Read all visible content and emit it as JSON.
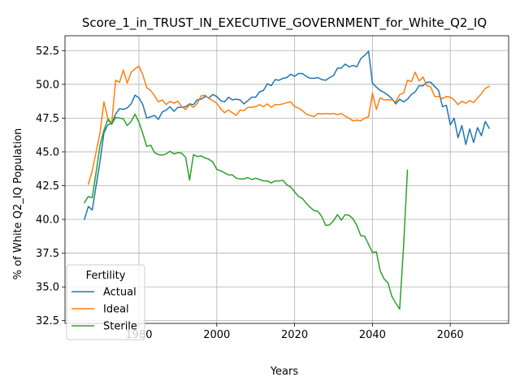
{
  "chart_data": {
    "type": "line",
    "title": "Score_1_in_TRUST_IN_EXECUTIVE_GOVERNMENT_for_White_Q2_IQ",
    "xlabel": "Years",
    "ylabel": "% of White Q2_IQ Population",
    "xlim": [
      1961,
      2075
    ],
    "ylim": [
      32.3,
      53.6
    ],
    "xticks": [
      1980,
      2000,
      2020,
      2040,
      2060
    ],
    "yticks": [
      32.5,
      35.0,
      37.5,
      40.0,
      42.5,
      45.0,
      47.5,
      50.0,
      52.5
    ],
    "ytick_labels": [
      "32.5",
      "35.0",
      "37.5",
      "40.0",
      "42.5",
      "45.0",
      "47.5",
      "50.0",
      "52.5"
    ],
    "grid": true,
    "legend": {
      "title": "Fertility",
      "position": "lower-left"
    },
    "series": [
      {
        "name": "Actual",
        "color": "#1f77b4",
        "x": [
          1966,
          1967,
          1968,
          1969,
          1970,
          1971,
          1972,
          1973,
          1974,
          1975,
          1976,
          1977,
          1978,
          1979,
          1980,
          1981,
          1982,
          1983,
          1984,
          1985,
          1986,
          1987,
          1988,
          1989,
          1990,
          1991,
          1992,
          1993,
          1994,
          1995,
          1996,
          1997,
          1998,
          1999,
          2000,
          2001,
          2002,
          2003,
          2004,
          2005,
          2006,
          2007,
          2008,
          2009,
          2010,
          2011,
          2012,
          2013,
          2014,
          2015,
          2016,
          2017,
          2018,
          2019,
          2020,
          2021,
          2022,
          2023,
          2024,
          2025,
          2026,
          2027,
          2028,
          2029,
          2030,
          2031,
          2032,
          2033,
          2034,
          2035,
          2036,
          2037,
          2038,
          2039,
          2040,
          2041,
          2042,
          2043,
          2044,
          2045,
          2046,
          2047,
          2048,
          2049,
          2050,
          2051,
          2052,
          2053,
          2054,
          2055,
          2056,
          2057,
          2058,
          2059,
          2060,
          2061,
          2062,
          2063,
          2064,
          2065,
          2066,
          2067,
          2068,
          2069,
          2070
        ],
        "values": [
          40.0,
          40.95,
          40.7,
          42.5,
          44.3,
          46.4,
          47.0,
          47.1,
          47.8,
          48.2,
          48.15,
          48.25,
          48.55,
          49.2,
          49.0,
          48.5,
          47.5,
          47.6,
          47.7,
          47.4,
          47.95,
          48.1,
          48.35,
          48.0,
          48.3,
          48.3,
          48.35,
          48.55,
          48.5,
          48.85,
          48.9,
          49.1,
          49.0,
          49.25,
          49.1,
          48.8,
          48.7,
          49.05,
          48.85,
          48.9,
          48.85,
          48.55,
          48.8,
          49.05,
          49.05,
          49.45,
          49.55,
          50.05,
          49.9,
          50.35,
          50.3,
          50.45,
          50.5,
          50.75,
          50.6,
          50.8,
          50.8,
          50.6,
          50.45,
          50.45,
          50.5,
          50.35,
          50.3,
          50.5,
          50.65,
          51.2,
          51.2,
          51.5,
          51.3,
          51.4,
          51.3,
          51.9,
          52.15,
          52.45,
          50.1,
          49.8,
          49.55,
          49.4,
          49.2,
          48.95,
          48.55,
          48.9,
          48.7,
          48.9,
          49.25,
          49.45,
          49.9,
          49.9,
          50.15,
          50.15,
          49.85,
          49.55,
          48.35,
          48.45,
          47.0,
          47.5,
          46.05,
          46.95,
          45.55,
          46.7,
          45.7,
          46.8,
          46.2,
          47.25,
          46.75
        ]
      },
      {
        "name": "Ideal",
        "color": "#ff7f0e",
        "x": [
          1967,
          1968,
          1969,
          1970,
          1971,
          1972,
          1973,
          1974,
          1975,
          1976,
          1977,
          1978,
          1979,
          1980,
          1981,
          1982,
          1983,
          1984,
          1985,
          1986,
          1987,
          1988,
          1989,
          1990,
          1991,
          1992,
          1993,
          1994,
          1995,
          1996,
          1997,
          1998,
          1999,
          2000,
          2001,
          2002,
          2003,
          2004,
          2005,
          2006,
          2007,
          2008,
          2009,
          2010,
          2011,
          2012,
          2013,
          2014,
          2015,
          2016,
          2017,
          2018,
          2019,
          2020,
          2021,
          2022,
          2023,
          2024,
          2025,
          2026,
          2027,
          2028,
          2029,
          2030,
          2031,
          2032,
          2033,
          2034,
          2035,
          2036,
          2037,
          2038,
          2039,
          2040,
          2041,
          2042,
          2043,
          2044,
          2045,
          2046,
          2047,
          2048,
          2049,
          2050,
          2051,
          2052,
          2053,
          2054,
          2055,
          2056,
          2057,
          2058,
          2059,
          2060,
          2061,
          2062,
          2063,
          2064,
          2065,
          2066,
          2067,
          2068,
          2069,
          2070
        ],
        "values": [
          42.6,
          43.6,
          45.0,
          46.4,
          48.7,
          47.5,
          47.1,
          50.3,
          50.15,
          51.05,
          50.1,
          50.9,
          51.15,
          51.35,
          50.7,
          49.75,
          49.55,
          49.15,
          48.7,
          48.85,
          48.5,
          48.75,
          48.6,
          48.75,
          48.35,
          48.15,
          48.5,
          48.3,
          48.6,
          49.15,
          49.2,
          48.95,
          48.8,
          48.6,
          48.2,
          47.9,
          48.1,
          47.9,
          47.7,
          48.1,
          48.05,
          48.3,
          48.3,
          48.35,
          48.5,
          48.35,
          48.55,
          48.3,
          48.5,
          48.5,
          48.55,
          48.65,
          48.7,
          48.35,
          48.25,
          48.05,
          47.8,
          47.7,
          47.6,
          47.85,
          47.8,
          47.85,
          47.8,
          47.85,
          47.75,
          47.85,
          47.65,
          47.5,
          47.3,
          47.35,
          47.3,
          47.5,
          47.6,
          49.35,
          48.15,
          49.0,
          48.85,
          48.85,
          48.85,
          48.7,
          49.25,
          49.35,
          50.3,
          50.2,
          50.9,
          50.25,
          50.55,
          49.9,
          49.8,
          49.1,
          49.1,
          48.95,
          49.1,
          49.05,
          48.85,
          48.5,
          48.75,
          48.6,
          48.8,
          48.65,
          49.0,
          49.3,
          49.7,
          49.85
        ]
      },
      {
        "name": "Sterile",
        "color": "#2ca02c",
        "x": [
          1966,
          1967,
          1968,
          1969,
          1970,
          1971,
          1972,
          1973,
          1974,
          1975,
          1976,
          1977,
          1978,
          1979,
          1980,
          1981,
          1982,
          1983,
          1984,
          1985,
          1986,
          1987,
          1988,
          1989,
          1990,
          1991,
          1992,
          1993,
          1994,
          1995,
          1996,
          1997,
          1998,
          1999,
          2000,
          2001,
          2002,
          2003,
          2004,
          2005,
          2006,
          2007,
          2008,
          2009,
          2010,
          2011,
          2012,
          2013,
          2014,
          2015,
          2016,
          2017,
          2018,
          2019,
          2020,
          2021,
          2022,
          2023,
          2024,
          2025,
          2026,
          2027,
          2028,
          2029,
          2030,
          2031,
          2032,
          2033,
          2034,
          2035,
          2036,
          2037,
          2038,
          2039,
          2040,
          2041,
          2042,
          2043,
          2044,
          2045,
          2046,
          2047,
          2048,
          2049
        ],
        "values": [
          41.25,
          41.7,
          41.6,
          43.5,
          45.5,
          46.6,
          47.4,
          47.05,
          47.55,
          47.5,
          47.45,
          46.95,
          47.25,
          47.8,
          47.2,
          46.35,
          45.4,
          45.5,
          44.95,
          44.8,
          44.75,
          44.85,
          45.05,
          44.85,
          44.95,
          44.9,
          44.6,
          42.9,
          44.8,
          44.65,
          44.7,
          44.55,
          44.45,
          44.25,
          43.7,
          43.6,
          43.45,
          43.3,
          43.3,
          43.05,
          43.0,
          43.0,
          43.1,
          42.95,
          43.05,
          42.95,
          42.85,
          42.85,
          42.7,
          42.85,
          42.85,
          42.9,
          42.55,
          42.4,
          42.05,
          41.7,
          41.55,
          41.2,
          40.9,
          40.65,
          40.6,
          40.2,
          39.55,
          39.6,
          39.9,
          40.35,
          39.95,
          40.35,
          40.3,
          40.05,
          39.55,
          38.8,
          38.75,
          38.15,
          37.55,
          37.6,
          36.2,
          35.6,
          35.3,
          34.3,
          33.8,
          33.35,
          38.0,
          43.65
        ]
      }
    ]
  }
}
